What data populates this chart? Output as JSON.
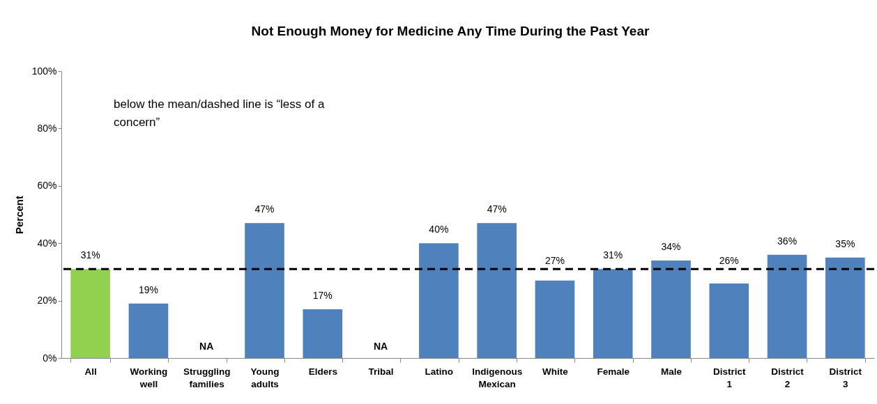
{
  "chart_data": {
    "type": "bar",
    "title": "Not Enough Money for Medicine Any Time During the Past Year",
    "ylabel": "Percent",
    "categories": [
      "All",
      "Working well",
      "Struggling families",
      "Young adults",
      "Elders",
      "Tribal",
      "Latino",
      "Indigenous Mexican",
      "White",
      "Female",
      "Male",
      "District 1",
      "District 2",
      "District 3"
    ],
    "values": [
      31,
      19,
      null,
      47,
      17,
      null,
      40,
      47,
      27,
      31,
      34,
      26,
      36,
      35
    ],
    "colors": [
      "#92d050",
      "#4f81bd",
      "#4f81bd",
      "#4f81bd",
      "#4f81bd",
      "#4f81bd",
      "#4f81bd",
      "#4f81bd",
      "#4f81bd",
      "#4f81bd",
      "#4f81bd",
      "#4f81bd",
      "#4f81bd",
      "#4f81bd"
    ],
    "value_labels": [
      "31%",
      "19%",
      "NA",
      "47%",
      "17%",
      "NA",
      "40%",
      "47%",
      "27%",
      "31%",
      "34%",
      "26%",
      "36%",
      "35%"
    ],
    "ylim": [
      0,
      100
    ],
    "yticks": [
      {
        "value": 0,
        "label": "0%"
      },
      {
        "value": 20,
        "label": "20%"
      },
      {
        "value": 40,
        "label": "40%"
      },
      {
        "value": 60,
        "label": "60%"
      },
      {
        "value": 80,
        "label": "80%"
      },
      {
        "value": 100,
        "label": "100%"
      }
    ],
    "grid": false,
    "ref_lines": [
      {
        "axis": "y",
        "value": 31,
        "color": "#000000",
        "line_style": "dashed"
      }
    ],
    "annotations": [
      "below the mean/dashed line is “less of a concern”"
    ]
  }
}
